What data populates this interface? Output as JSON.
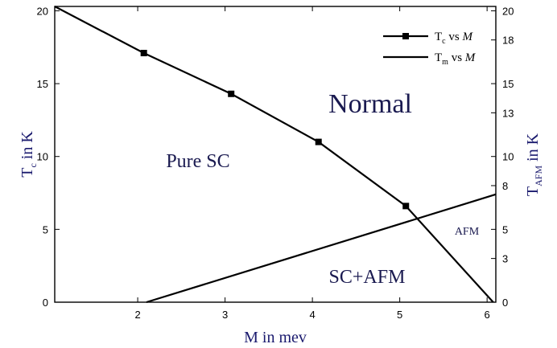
{
  "chart_data": {
    "type": "line",
    "xlabel": "M in mev",
    "ylabel_main": "T",
    "ylabel_sub": "c",
    "ylabel_tail": " in K",
    "y2label_main": "T",
    "y2label_sub": "AFM",
    "y2label_tail": " in K",
    "xlim": [
      1.05,
      6.1
    ],
    "ylim": [
      0,
      20.3
    ],
    "y2lim": [
      0,
      20.3
    ],
    "x_ticks": [
      2,
      3,
      4,
      5,
      6
    ],
    "y_ticks": [
      0,
      5,
      10,
      15,
      20
    ],
    "y2_ticks": [
      0,
      3,
      5,
      8,
      10,
      13,
      15,
      18,
      20
    ],
    "series": [
      {
        "name_main": "T",
        "name_sub": "c",
        "name_tail": " vs ",
        "name_var": "M",
        "marker": "square",
        "x": [
          1.05,
          2.07,
          3.07,
          4.07,
          5.07,
          6.07
        ],
        "y": [
          20.3,
          17.1,
          14.3,
          11.0,
          6.6,
          0.0
        ],
        "marker_x": [
          2.07,
          3.07,
          4.07,
          5.07
        ],
        "marker_y": [
          17.1,
          14.3,
          11.0,
          6.6
        ]
      },
      {
        "name_main": "T",
        "name_sub": "m",
        "name_tail": " vs ",
        "name_var": "M",
        "marker": "none",
        "x": [
          2.1,
          6.1
        ],
        "y": [
          0.0,
          7.4
        ]
      }
    ],
    "annotations": {
      "normal": "Normal",
      "pure_sc": "Pure SC",
      "afm": "AFM",
      "sc_afm": "SC+AFM",
      "normal_color": "#1f4a1f"
    },
    "legend": "top-right",
    "grid": false
  }
}
